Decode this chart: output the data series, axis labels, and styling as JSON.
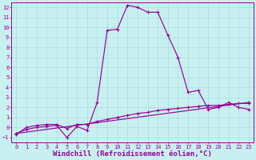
{
  "background_color": "#c8f0f0",
  "grid_color": "#aadddd",
  "line_color": "#990099",
  "xlabel": "Windchill (Refroidissement éolien,°C)",
  "xlim": [
    -0.5,
    23.5
  ],
  "ylim": [
    -1.5,
    12.5
  ],
  "xticks": [
    0,
    1,
    2,
    3,
    4,
    5,
    6,
    7,
    8,
    9,
    10,
    11,
    12,
    13,
    14,
    15,
    16,
    17,
    18,
    19,
    20,
    21,
    22,
    23
  ],
  "yticks": [
    -1,
    0,
    1,
    2,
    3,
    4,
    5,
    6,
    7,
    8,
    9,
    10,
    11,
    12
  ],
  "series1_x": [
    0,
    1,
    2,
    3,
    4,
    5,
    6,
    7,
    8,
    9,
    10,
    11,
    12,
    13,
    14,
    15,
    16,
    17,
    18,
    19,
    20,
    21,
    22,
    23
  ],
  "series1_y": [
    -0.6,
    -0.2,
    0.0,
    0.1,
    0.2,
    -1.0,
    0.1,
    -0.3,
    2.5,
    9.7,
    9.8,
    12.2,
    12.0,
    11.5,
    11.5,
    9.2,
    7.0,
    3.5,
    3.7,
    1.8,
    2.0,
    2.5,
    2.0,
    1.8
  ],
  "series2_x": [
    0,
    1,
    2,
    3,
    4,
    5,
    6,
    7,
    8,
    9,
    10,
    11,
    12,
    13,
    14,
    15,
    16,
    17,
    18,
    19,
    20,
    21,
    22,
    23
  ],
  "series2_y": [
    -0.7,
    0.0,
    0.2,
    0.3,
    0.3,
    -0.1,
    0.3,
    0.3,
    0.6,
    0.8,
    1.0,
    1.2,
    1.4,
    1.5,
    1.7,
    1.8,
    1.9,
    2.0,
    2.1,
    2.2,
    2.2,
    2.3,
    2.4,
    2.4
  ],
  "series3_x": [
    0,
    23
  ],
  "series3_y": [
    -0.6,
    2.5
  ],
  "tick_fontsize": 5,
  "label_fontsize": 6.5
}
